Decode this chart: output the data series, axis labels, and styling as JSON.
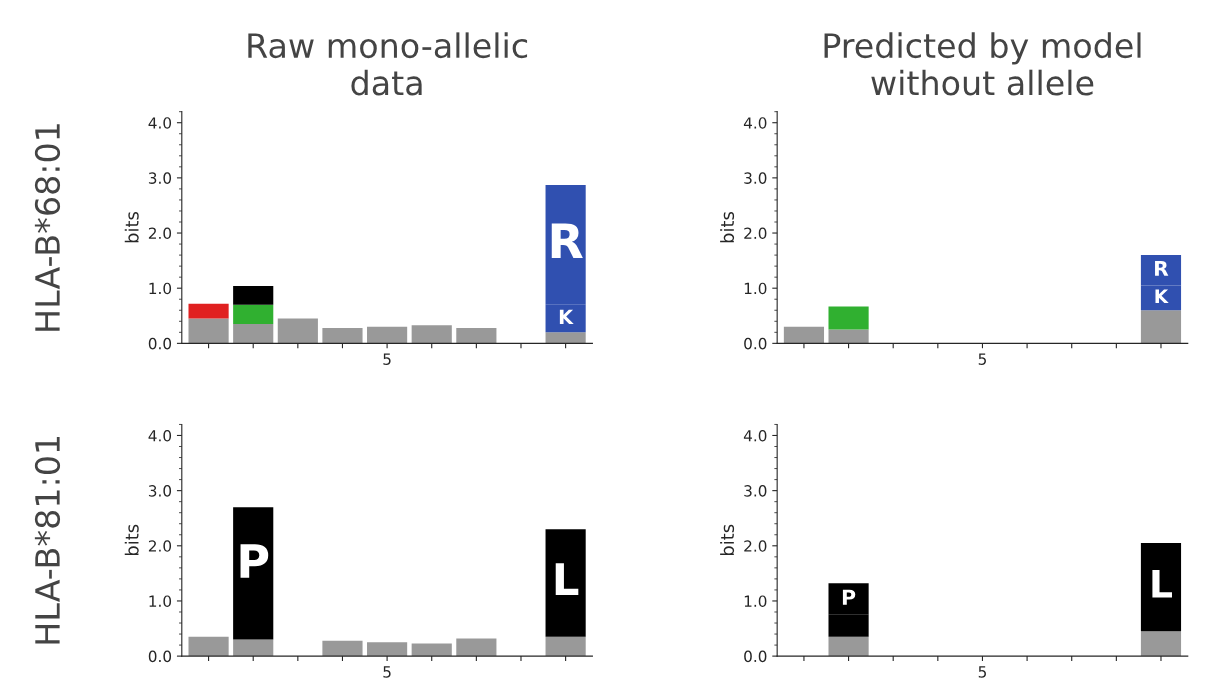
{
  "chart_data": [
    {
      "type": "bar",
      "stacked": true,
      "title": "Raw mono-allelic\ndata",
      "ylabel": "bits",
      "annotations": [
        "HLA-B*68:01"
      ],
      "categories": [
        null,
        null,
        null,
        null,
        "5",
        null,
        null,
        null,
        null
      ],
      "ylim": [
        0,
        4.2
      ],
      "yticks": [
        {
          "value": 0,
          "label": "0.0"
        },
        {
          "value": 1,
          "label": "1.0"
        },
        {
          "value": 2,
          "label": "2.0"
        },
        {
          "value": 3,
          "label": "3.0"
        },
        {
          "value": 4,
          "label": "4.0"
        }
      ],
      "series": [
        {
          "color": "#999999",
          "values": [
            0.45,
            0.35,
            0.45,
            0.28,
            0.3,
            0.33,
            0.28,
            0,
            0.2
          ]
        },
        {
          "color": "#e02020",
          "values": [
            0.27,
            0,
            0,
            0,
            0,
            0,
            0,
            0,
            0
          ]
        },
        {
          "color": "#30b030",
          "values": [
            0,
            0.35,
            0,
            0,
            0,
            0,
            0,
            0,
            0
          ]
        },
        {
          "color": "#000000",
          "values": [
            0,
            0.34,
            0,
            0,
            0,
            0,
            0,
            0,
            0
          ]
        },
        {
          "name": "K",
          "color": "#3050b0",
          "values": [
            0,
            0,
            0,
            0,
            0,
            0,
            0,
            0,
            0.5
          ]
        },
        {
          "name": "R",
          "color": "#3050b0",
          "values": [
            0,
            0,
            0,
            0,
            0,
            0,
            0,
            0,
            2.17
          ]
        }
      ]
    },
    {
      "type": "bar",
      "stacked": true,
      "title": "Predicted by model\nwithout allele",
      "ylabel": "bits",
      "categories": [
        null,
        null,
        null,
        null,
        "5",
        null,
        null,
        null,
        null
      ],
      "ylim": [
        0,
        4.2
      ],
      "yticks": [
        {
          "value": 0,
          "label": "0.0"
        },
        {
          "value": 1,
          "label": "1.0"
        },
        {
          "value": 2,
          "label": "2.0"
        },
        {
          "value": 3,
          "label": "3.0"
        },
        {
          "value": 4,
          "label": "4.0"
        }
      ],
      "series": [
        {
          "color": "#999999",
          "values": [
            0.3,
            0.25,
            0,
            0,
            0,
            0,
            0,
            0,
            0.6
          ]
        },
        {
          "color": "#30b030",
          "values": [
            0,
            0.42,
            0,
            0,
            0,
            0,
            0,
            0,
            0
          ]
        },
        {
          "name": "K",
          "color": "#3050b0",
          "values": [
            0,
            0,
            0,
            0,
            0,
            0,
            0,
            0,
            0.45
          ]
        },
        {
          "name": "R",
          "color": "#3050b0",
          "values": [
            0,
            0,
            0,
            0,
            0,
            0,
            0,
            0,
            0.55
          ]
        }
      ]
    },
    {
      "type": "bar",
      "stacked": true,
      "ylabel": "bits",
      "annotations": [
        "HLA-B*81:01"
      ],
      "categories": [
        null,
        null,
        null,
        null,
        "5",
        null,
        null,
        null,
        null
      ],
      "ylim": [
        0,
        4.2
      ],
      "yticks": [
        {
          "value": 0,
          "label": "0.0"
        },
        {
          "value": 1,
          "label": "1.0"
        },
        {
          "value": 2,
          "label": "2.0"
        },
        {
          "value": 3,
          "label": "3.0"
        },
        {
          "value": 4,
          "label": "4.0"
        }
      ],
      "series": [
        {
          "color": "#999999",
          "values": [
            0.35,
            0.3,
            0,
            0.28,
            0.25,
            0.23,
            0.32,
            0,
            0.35
          ]
        },
        {
          "color": "#000000",
          "values": [
            0,
            0.3,
            0,
            0,
            0,
            0,
            0,
            0,
            0
          ]
        },
        {
          "name": "P",
          "color": "#000000",
          "values": [
            0,
            2.1,
            0,
            0,
            0,
            0,
            0,
            0,
            0
          ]
        },
        {
          "name": "L",
          "color": "#000000",
          "values": [
            0,
            0,
            0,
            0,
            0,
            0,
            0,
            0,
            1.95
          ]
        }
      ]
    },
    {
      "type": "bar",
      "stacked": true,
      "ylabel": "bits",
      "categories": [
        null,
        null,
        null,
        null,
        "5",
        null,
        null,
        null,
        null
      ],
      "ylim": [
        0,
        4.2
      ],
      "yticks": [
        {
          "value": 0,
          "label": "0.0"
        },
        {
          "value": 1,
          "label": "1.0"
        },
        {
          "value": 2,
          "label": "2.0"
        },
        {
          "value": 3,
          "label": "3.0"
        },
        {
          "value": 4,
          "label": "4.0"
        }
      ],
      "series": [
        {
          "color": "#999999",
          "values": [
            0,
            0.35,
            0,
            0,
            0,
            0,
            0,
            0,
            0.45
          ]
        },
        {
          "color": "#000000",
          "values": [
            0,
            0.4,
            0,
            0,
            0,
            0,
            0,
            0,
            0
          ]
        },
        {
          "name": "P",
          "color": "#000000",
          "values": [
            0,
            0.57,
            0,
            0,
            0,
            0,
            0,
            0,
            0
          ]
        },
        {
          "name": "L",
          "color": "#000000",
          "values": [
            0,
            0,
            0,
            0,
            0,
            0,
            0,
            0,
            1.6
          ]
        }
      ]
    }
  ]
}
